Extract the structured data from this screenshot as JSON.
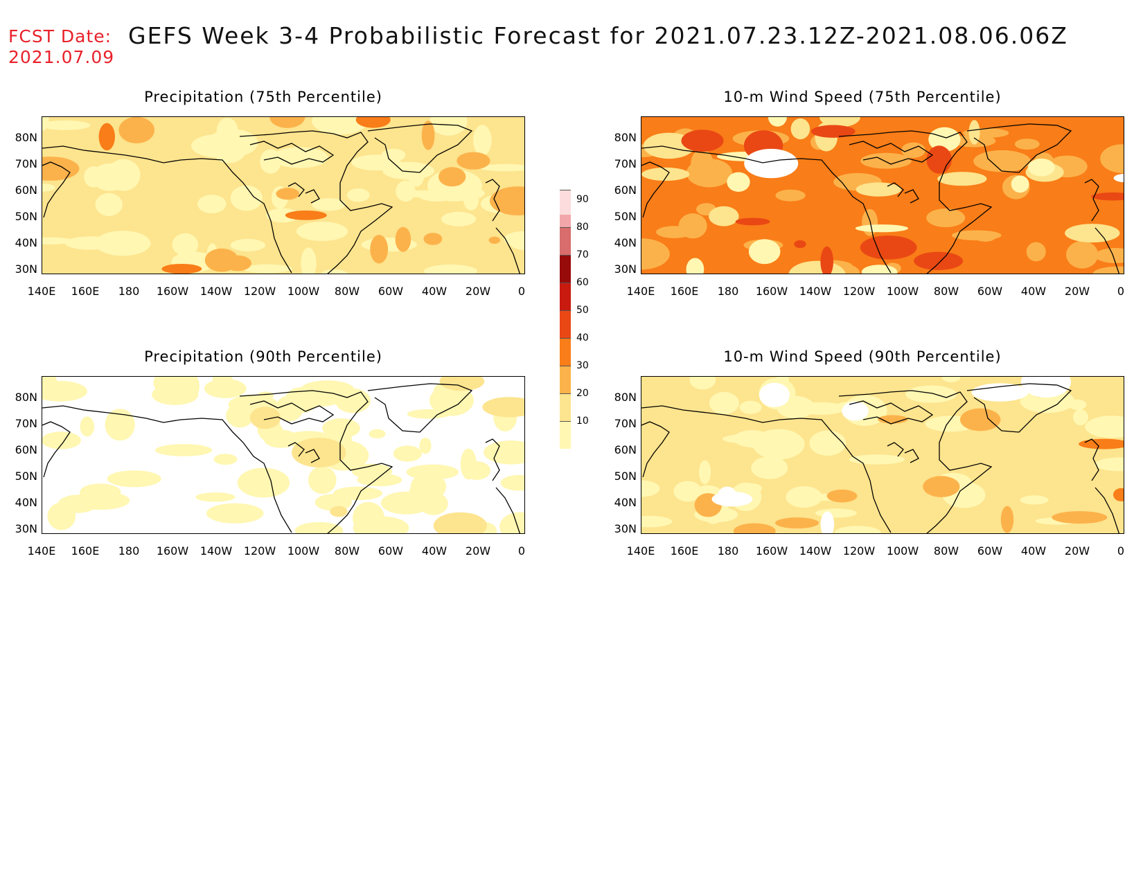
{
  "header": {
    "fcst_label": "FCST Date:",
    "fcst_date": "2021.07.09",
    "title": "GEFS Week 3-4 Probabilistic Forecast for 2021.07.23.12Z-2021.08.06.06Z"
  },
  "panels": [
    {
      "title": "Precipitation (75th Percentile)",
      "variant": "precip75"
    },
    {
      "title": "10-m Wind Speed (75th Percentile)",
      "variant": "wind75"
    },
    {
      "title": "Precipitation (90th Percentile)",
      "variant": "precip90"
    },
    {
      "title": "10-m Wind Speed (90th Percentile)",
      "variant": "wind90"
    }
  ],
  "lat_labels": [
    "80N",
    "70N",
    "60N",
    "50N",
    "40N",
    "30N"
  ],
  "lon_labels": [
    "140E",
    "160E",
    "180",
    "160W",
    "140W",
    "120W",
    "100W",
    "80W",
    "60W",
    "40W",
    "20W",
    "0"
  ],
  "colorbar": {
    "levels": [
      "10",
      "20",
      "30",
      "40",
      "50",
      "60",
      "70",
      "80",
      "90"
    ],
    "colors": [
      "#fff7b2",
      "#fde48e",
      "#fcb24b",
      "#f97d18",
      "#e94814",
      "#c81a0e",
      "#970b0b",
      "#d96c6c",
      "#f2a6aa",
      "#fcdcdc"
    ]
  }
}
